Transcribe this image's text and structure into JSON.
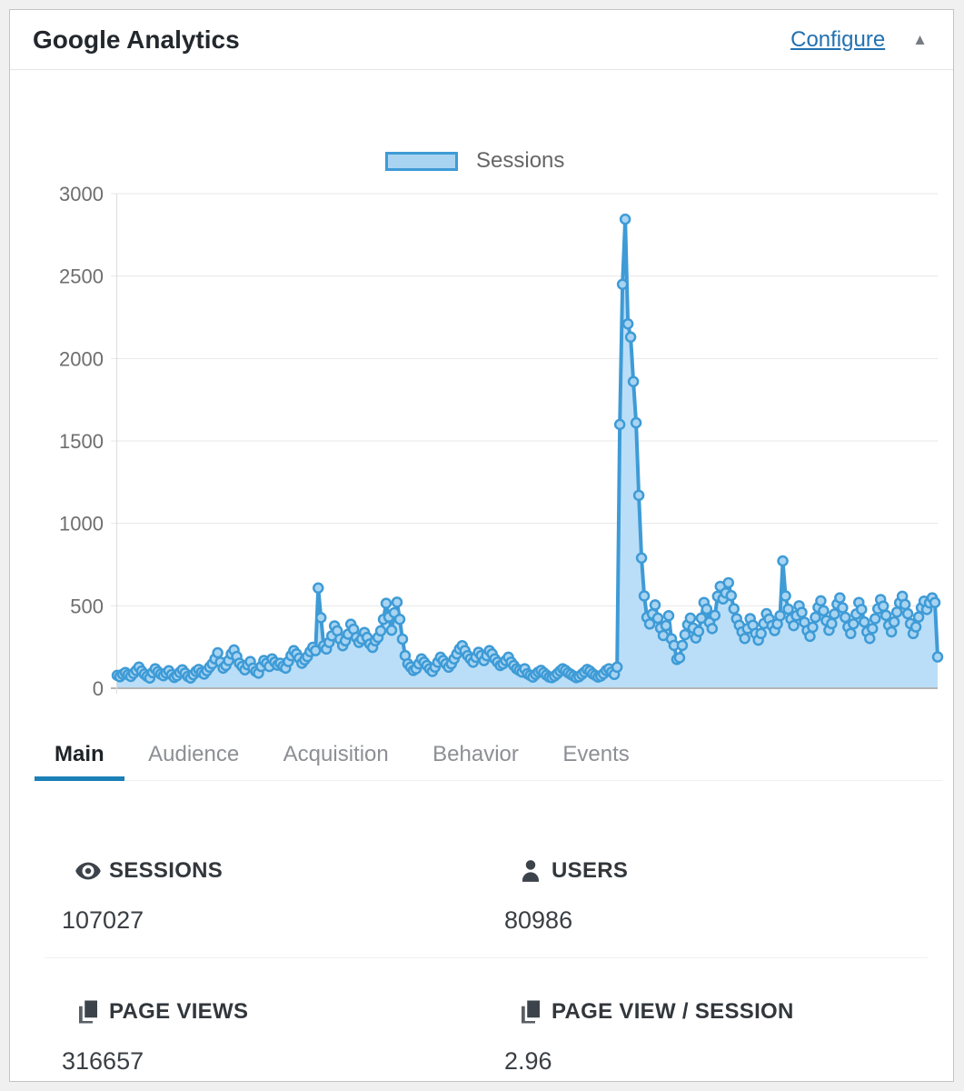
{
  "header": {
    "title": "Google Analytics",
    "configure_label": "Configure",
    "collapse_icon": "▲"
  },
  "legend": {
    "label": "Sessions"
  },
  "chart_data": {
    "type": "area",
    "series": [
      {
        "name": "Sessions",
        "values": [
          78,
          70,
          85,
          95,
          82,
          72,
          90,
          108,
          128,
          104,
          86,
          72,
          62,
          95,
          118,
          100,
          86,
          76,
          92,
          106,
          82,
          66,
          76,
          96,
          112,
          92,
          72,
          62,
          82,
          102,
          114,
          96,
          86,
          106,
          128,
          148,
          178,
          215,
          158,
          122,
          138,
          168,
          208,
          232,
          192,
          152,
          132,
          112,
          142,
          162,
          122,
          102,
          92,
          132,
          168,
          152,
          132,
          178,
          158,
          140,
          152,
          132,
          122,
          162,
          198,
          228,
          208,
          182,
          152,
          172,
          192,
          222,
          248,
          228,
          608,
          428,
          258,
          238,
          278,
          318,
          378,
          348,
          298,
          258,
          288,
          328,
          388,
          358,
          308,
          278,
          298,
          338,
          308,
          268,
          248,
          288,
          308,
          348,
          418,
          515,
          432,
          352,
          458,
          522,
          418,
          298,
          198,
          148,
          128,
          108,
          118,
          148,
          178,
          158,
          138,
          118,
          102,
          128,
          158,
          188,
          168,
          148,
          128,
          148,
          178,
          208,
          238,
          258,
          228,
          198,
          178,
          158,
          188,
          218,
          198,
          168,
          198,
          228,
          208,
          178,
          158,
          138,
          148,
          168,
          188,
          158,
          138,
          118,
          108,
          98,
          118,
          88,
          78,
          68,
          84,
          98,
          108,
          94,
          80,
          68,
          64,
          74,
          88,
          104,
          118,
          108,
          94,
          84,
          74,
          64,
          70,
          84,
          98,
          114,
          104,
          88,
          78,
          68,
          74,
          88,
          108,
          118,
          98,
          84,
          128,
          1600,
          2450,
          2845,
          2210,
          2130,
          1860,
          1610,
          1170,
          790,
          560,
          430,
          390,
          450,
          505,
          425,
          365,
          320,
          380,
          440,
          300,
          260,
          175,
          185,
          260,
          325,
          385,
          425,
          365,
          305,
          345,
          425,
          520,
          480,
          400,
          362,
          442,
          558,
          618,
          542,
          578,
          640,
          562,
          482,
          422,
          382,
          342,
          302,
          362,
          422,
          382,
          332,
          292,
          332,
          392,
          452,
          420,
          380,
          350,
          390,
          440,
          772,
          560,
          480,
          420,
          380,
          440,
          500,
          460,
          400,
          350,
          315,
          370,
          430,
          490,
          530,
          470,
          410,
          352,
          392,
          450,
          510,
          548,
          488,
          430,
          372,
          332,
          390,
          450,
          520,
          478,
          402,
          342,
          302,
          362,
          422,
          482,
          538,
          498,
          442,
          382,
          342,
          402,
          462,
          518,
          558,
          508,
          452,
          392,
          332,
          372,
          432,
          488,
          528,
          478,
          518,
          548,
          520,
          190
        ]
      }
    ],
    "yticks": [
      0,
      500,
      1000,
      1500,
      2000,
      2500,
      3000
    ],
    "ylim": [
      0,
      3000
    ],
    "x_axis_labels_visible": false,
    "legend_position": "top-center",
    "grid": true,
    "colors": {
      "line": "#3e9bd6",
      "fill": "#badef8",
      "point_fill": "#a8d4f2",
      "grid": "#e7e7e7",
      "zero_line": "#b5b5b5",
      "axis": "#dcdcdc",
      "tick_text": "#6e6e6e"
    }
  },
  "tabs": [
    {
      "label": "Main",
      "active": true
    },
    {
      "label": "Audience",
      "active": false
    },
    {
      "label": "Acquisition",
      "active": false
    },
    {
      "label": "Behavior",
      "active": false
    },
    {
      "label": "Events",
      "active": false
    }
  ],
  "stats": [
    {
      "icon": "eye-icon",
      "label": "SESSIONS",
      "value": "107027"
    },
    {
      "icon": "user-icon",
      "label": "USERS",
      "value": "80986"
    },
    {
      "icon": "pages-icon",
      "label": "PAGE VIEWS",
      "value": "316657"
    },
    {
      "icon": "pages-icon",
      "label": "PAGE VIEW / SESSION",
      "value": "2.96"
    }
  ]
}
